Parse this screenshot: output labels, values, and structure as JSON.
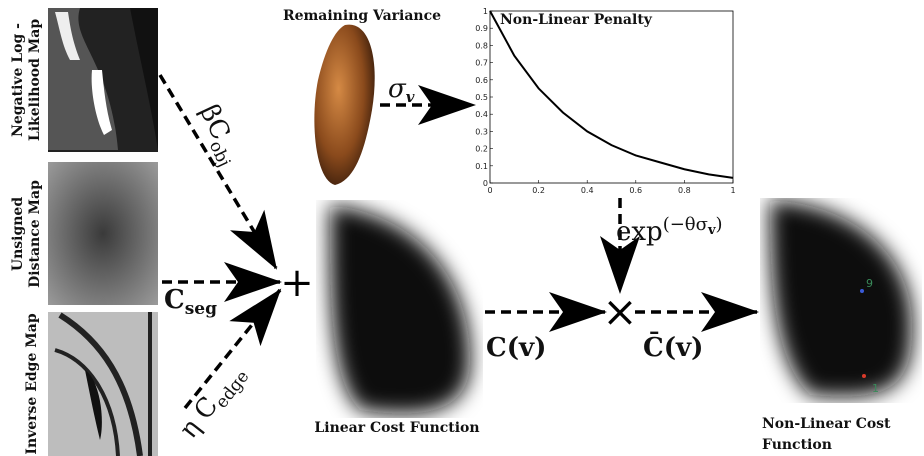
{
  "inputs": [
    {
      "label_lines": [
        "Negative Log -",
        "Likelihood Map"
      ]
    },
    {
      "label_lines": [
        "Unsigned",
        "Distance Map"
      ]
    },
    {
      "label_lines": [
        "Inverse Edge Map"
      ]
    }
  ],
  "edges": {
    "obj": {
      "main": "βC",
      "sub": "obj"
    },
    "seg": {
      "main": "C",
      "sub": "seg"
    },
    "edge": {
      "main": "η C",
      "sub": "edge"
    },
    "sigma": {
      "main": "σ",
      "sub": "v"
    },
    "exp": {
      "main": "exp",
      "sup": "(−θσ",
      "supsub": "v",
      "supend": ")"
    },
    "linear": "C(v)",
    "nonlinear": "C̄(v)"
  },
  "operators": {
    "sum": "+",
    "product": "×"
  },
  "remaining_variance": {
    "title": "Remaining Variance"
  },
  "penalty_plot": {
    "title": "Non-Linear Penalty",
    "xlim": [
      0,
      1
    ],
    "ylim": [
      0,
      1
    ],
    "xticks": [
      0,
      0.2,
      0.4,
      0.6,
      0.8,
      1
    ],
    "yticks": [
      0,
      0.1,
      0.2,
      0.3,
      0.4,
      0.5,
      0.6,
      0.7,
      0.8,
      0.9,
      1
    ],
    "x": [
      0,
      0.1,
      0.2,
      0.3,
      0.4,
      0.5,
      0.6,
      0.7,
      0.8,
      0.9,
      1
    ],
    "y": [
      1,
      0.74,
      0.55,
      0.41,
      0.3,
      0.22,
      0.16,
      0.12,
      0.08,
      0.05,
      0.03
    ]
  },
  "linear_cost": {
    "label": "Linear Cost Function"
  },
  "nonlinear_cost": {
    "label_lines": [
      "Non-Linear Cost",
      "Function"
    ],
    "markers": [
      "9",
      "1"
    ]
  }
}
